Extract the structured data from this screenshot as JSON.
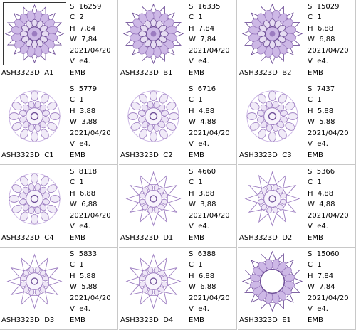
{
  "colors": {
    "design": "#9b7bc0",
    "design_dark": "#6f4f98",
    "design_light": "#cdb8e6",
    "divider": "#c8c8c8"
  },
  "designs": [
    {
      "name": "ASH3323D  A1",
      "stitches": "S  16259",
      "colors": "C  2",
      "height": "H  7,84",
      "width": "W  7,84",
      "date": "2021/04/20",
      "version": "V  e4.",
      "format": "EMB",
      "style": "lace",
      "selected": true
    },
    {
      "name": "ASH3323D  B1",
      "stitches": "S  16335",
      "colors": "C  1",
      "height": "H  7,84",
      "width": "W  7,84",
      "date": "2021/04/20",
      "version": "V  e4.",
      "format": "EMB",
      "style": "lace",
      "selected": false
    },
    {
      "name": "ASH3323D  B2",
      "stitches": "S  15029",
      "colors": "C  1",
      "height": "H  6,88",
      "width": "W  6,88",
      "date": "2021/04/20",
      "version": "V  e4.",
      "format": "EMB",
      "style": "lace",
      "selected": false
    },
    {
      "name": "ASH3323D  C1",
      "stitches": "S  5779",
      "colors": "C  1",
      "height": "H  3,88",
      "width": "W  3,88",
      "date": "2021/04/20",
      "version": "V  e4.",
      "format": "EMB",
      "style": "round",
      "selected": false
    },
    {
      "name": "ASH3323D  C2",
      "stitches": "S  6716",
      "colors": "C  1",
      "height": "H  4,88",
      "width": "W  4,88",
      "date": "2021/04/20",
      "version": "V  e4.",
      "format": "EMB",
      "style": "round",
      "selected": false
    },
    {
      "name": "ASH3323D  C3",
      "stitches": "S  7437",
      "colors": "C  1",
      "height": "H  5,88",
      "width": "W  5,88",
      "date": "2021/04/20",
      "version": "V  e4.",
      "format": "EMB",
      "style": "round",
      "selected": false
    },
    {
      "name": "ASH3323D  C4",
      "stitches": "S  8118",
      "colors": "C  1",
      "height": "H  6,88",
      "width": "W  6,88",
      "date": "2021/04/20",
      "version": "V  e4.",
      "format": "EMB",
      "style": "round",
      "selected": false
    },
    {
      "name": "ASH3323D  D1",
      "stitches": "S  4660",
      "colors": "C  1",
      "height": "H  3,88",
      "width": "W  3,88",
      "date": "2021/04/20",
      "version": "V  e4.",
      "format": "EMB",
      "style": "star",
      "selected": false
    },
    {
      "name": "ASH3323D  D2",
      "stitches": "S  5366",
      "colors": "C  1",
      "height": "H  4,88",
      "width": "W  4,88",
      "date": "2021/04/20",
      "version": "V  e4.",
      "format": "EMB",
      "style": "star",
      "selected": false
    },
    {
      "name": "ASH3323D  D3",
      "stitches": "S  5833",
      "colors": "C  1",
      "height": "H  5,88",
      "width": "W  5,88",
      "date": "2021/04/20",
      "version": "V  e4.",
      "format": "EMB",
      "style": "star",
      "selected": false
    },
    {
      "name": "ASH3323D  D4",
      "stitches": "S  6388",
      "colors": "C  1",
      "height": "H  6,88",
      "width": "W  6,88",
      "date": "2021/04/20",
      "version": "V  e4.",
      "format": "EMB",
      "style": "star",
      "selected": false
    },
    {
      "name": "ASH3323D  E1",
      "stitches": "S  15060",
      "colors": "C  1",
      "height": "H  7,84",
      "width": "W  7,84",
      "date": "2021/04/20",
      "version": "V  e4.",
      "format": "EMB",
      "style": "ring",
      "selected": false
    }
  ]
}
